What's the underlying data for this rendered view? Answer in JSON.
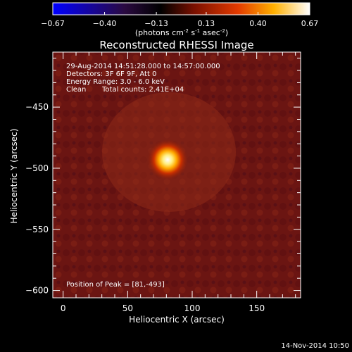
{
  "chart_data": {
    "type": "heatmap",
    "title": "Reconstructed RHESSI Image",
    "xlabel": "Heliocentric X (arcsec)",
    "ylabel": "Heliocentric Y (arcsec)",
    "xlim": [
      -8,
      184
    ],
    "ylim": [
      -606,
      -405
    ],
    "x_ticks": [
      0,
      50,
      100,
      150
    ],
    "y_ticks": [
      -450,
      -500,
      -550,
      -600
    ],
    "colorbar": {
      "ticks": [
        "-0.67",
        "-0.40",
        "-0.13",
        "0.13",
        "0.40",
        "0.67"
      ],
      "range": [
        -0.67,
        0.67
      ],
      "unit_label": {
        "pre": "(photons cm",
        "s1": "-2",
        "mid": " s",
        "s2": "-1",
        "mid2": " asec",
        "s3": "-2",
        "post": ")"
      }
    },
    "annotations": {
      "time_range": "29-Aug-2014 14:51:28.000 to 14:57:00.000",
      "detectors": "Detectors: 3F 6F 9F, Att 0",
      "energy": "Energy Range: 3.0 - 6.0 keV",
      "method": "Clean",
      "counts": "Total counts: 2.41E+04",
      "peak": "Position of Peak = [81,-493]"
    },
    "peak": {
      "x": 81,
      "y": -493
    },
    "background_level": 0.17,
    "footer_date": "14-Nov-2014 10:50"
  }
}
